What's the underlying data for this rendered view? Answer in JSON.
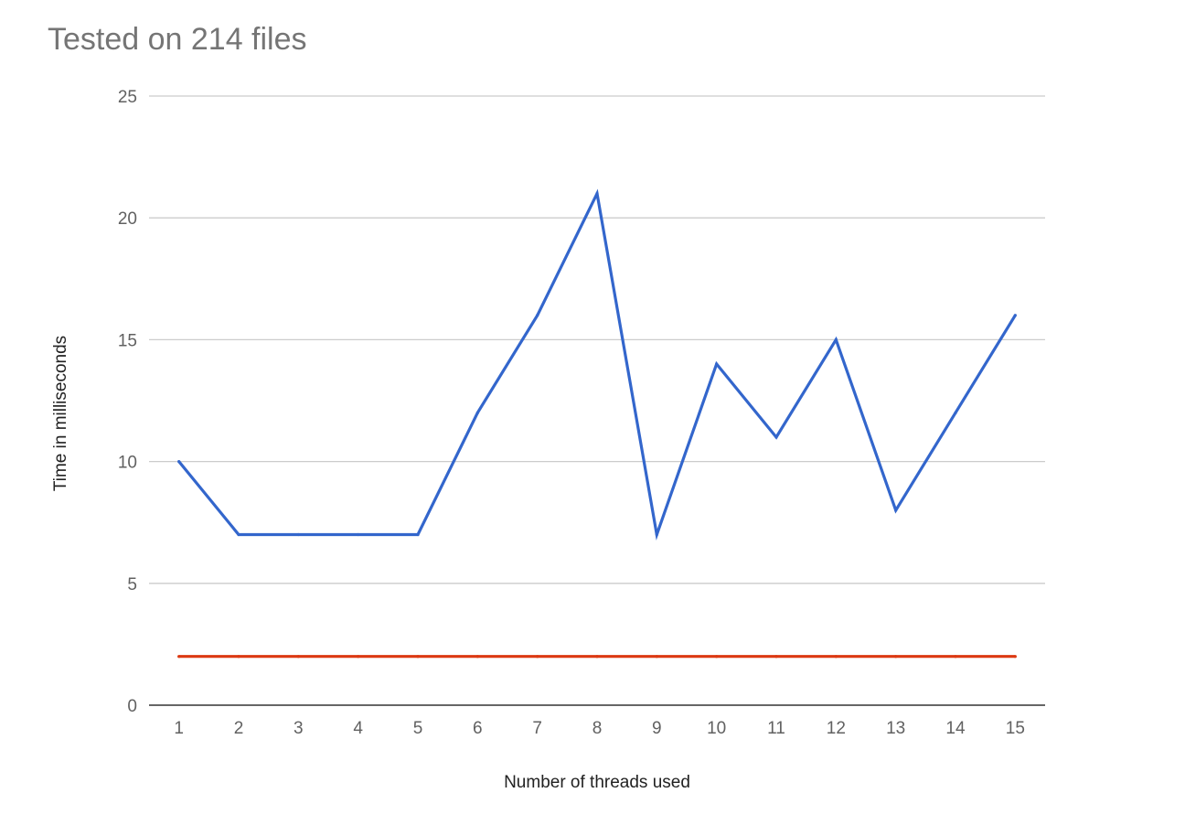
{
  "chart_data": {
    "type": "line",
    "title": "Tested on 214 files",
    "xlabel": "Number of threads used",
    "ylabel": "Time in milliseconds",
    "x": [
      1,
      2,
      3,
      4,
      5,
      6,
      7,
      8,
      9,
      10,
      11,
      12,
      13,
      14,
      15
    ],
    "ylim": [
      0,
      25
    ],
    "yticks": [
      0,
      5,
      10,
      15,
      20,
      25
    ],
    "grid": true,
    "legend": "none",
    "series": [
      {
        "color": "#3366cc",
        "values": [
          10,
          7,
          7,
          7,
          7,
          12,
          16,
          21,
          7,
          14,
          11,
          15,
          8,
          12,
          16
        ]
      },
      {
        "color": "#dc3912",
        "values": [
          2,
          2,
          2,
          2,
          2,
          2,
          2,
          2,
          2,
          2,
          2,
          2,
          2,
          2,
          2
        ]
      }
    ]
  }
}
